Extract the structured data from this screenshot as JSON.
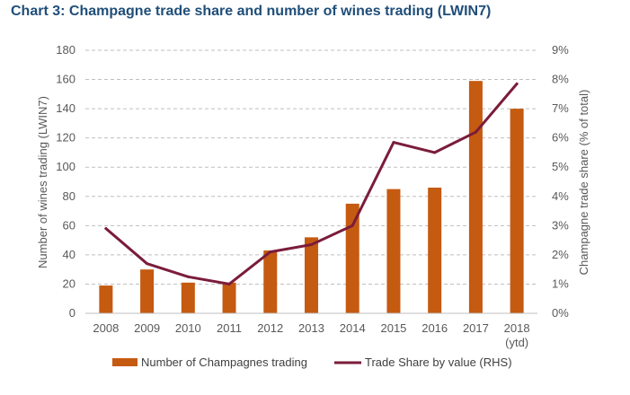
{
  "chart_data": {
    "type": "bar",
    "title": "Chart 3: Champagne trade share and number of wines trading (LWIN7)",
    "categories": [
      "2008",
      "2009",
      "2010",
      "2011",
      "2012",
      "2013",
      "2014",
      "2015",
      "2016",
      "2017",
      "2018"
    ],
    "category_sublabels": [
      "",
      "",
      "",
      "",
      "",
      "",
      "",
      "",
      "",
      "",
      "(ytd)"
    ],
    "series": [
      {
        "name": "Number of Champagnes trading",
        "type": "bar",
        "axis": "left",
        "color": "#c55a11",
        "values": [
          19,
          30,
          21,
          21,
          43,
          52,
          75,
          85,
          86,
          159,
          140
        ]
      },
      {
        "name": "Trade Share by value (RHS)",
        "type": "line",
        "axis": "right",
        "color": "#7b1c3a",
        "values": [
          2.9,
          1.7,
          1.25,
          1.0,
          2.1,
          2.35,
          3.0,
          5.85,
          5.5,
          6.2,
          7.85
        ]
      }
    ],
    "ylabel": "Number of wines trading (LWIN7)",
    "ylim": [
      0,
      180
    ],
    "yticks": [
      0,
      20,
      40,
      60,
      80,
      100,
      120,
      140,
      160,
      180
    ],
    "y2label": "Champagne trade share (% of total)",
    "y2lim": [
      0,
      9
    ],
    "y2ticks": [
      "0%",
      "1%",
      "2%",
      "3%",
      "4%",
      "5%",
      "6%",
      "7%",
      "8%",
      "9%"
    ],
    "grid": true,
    "legend_position": "bottom"
  }
}
